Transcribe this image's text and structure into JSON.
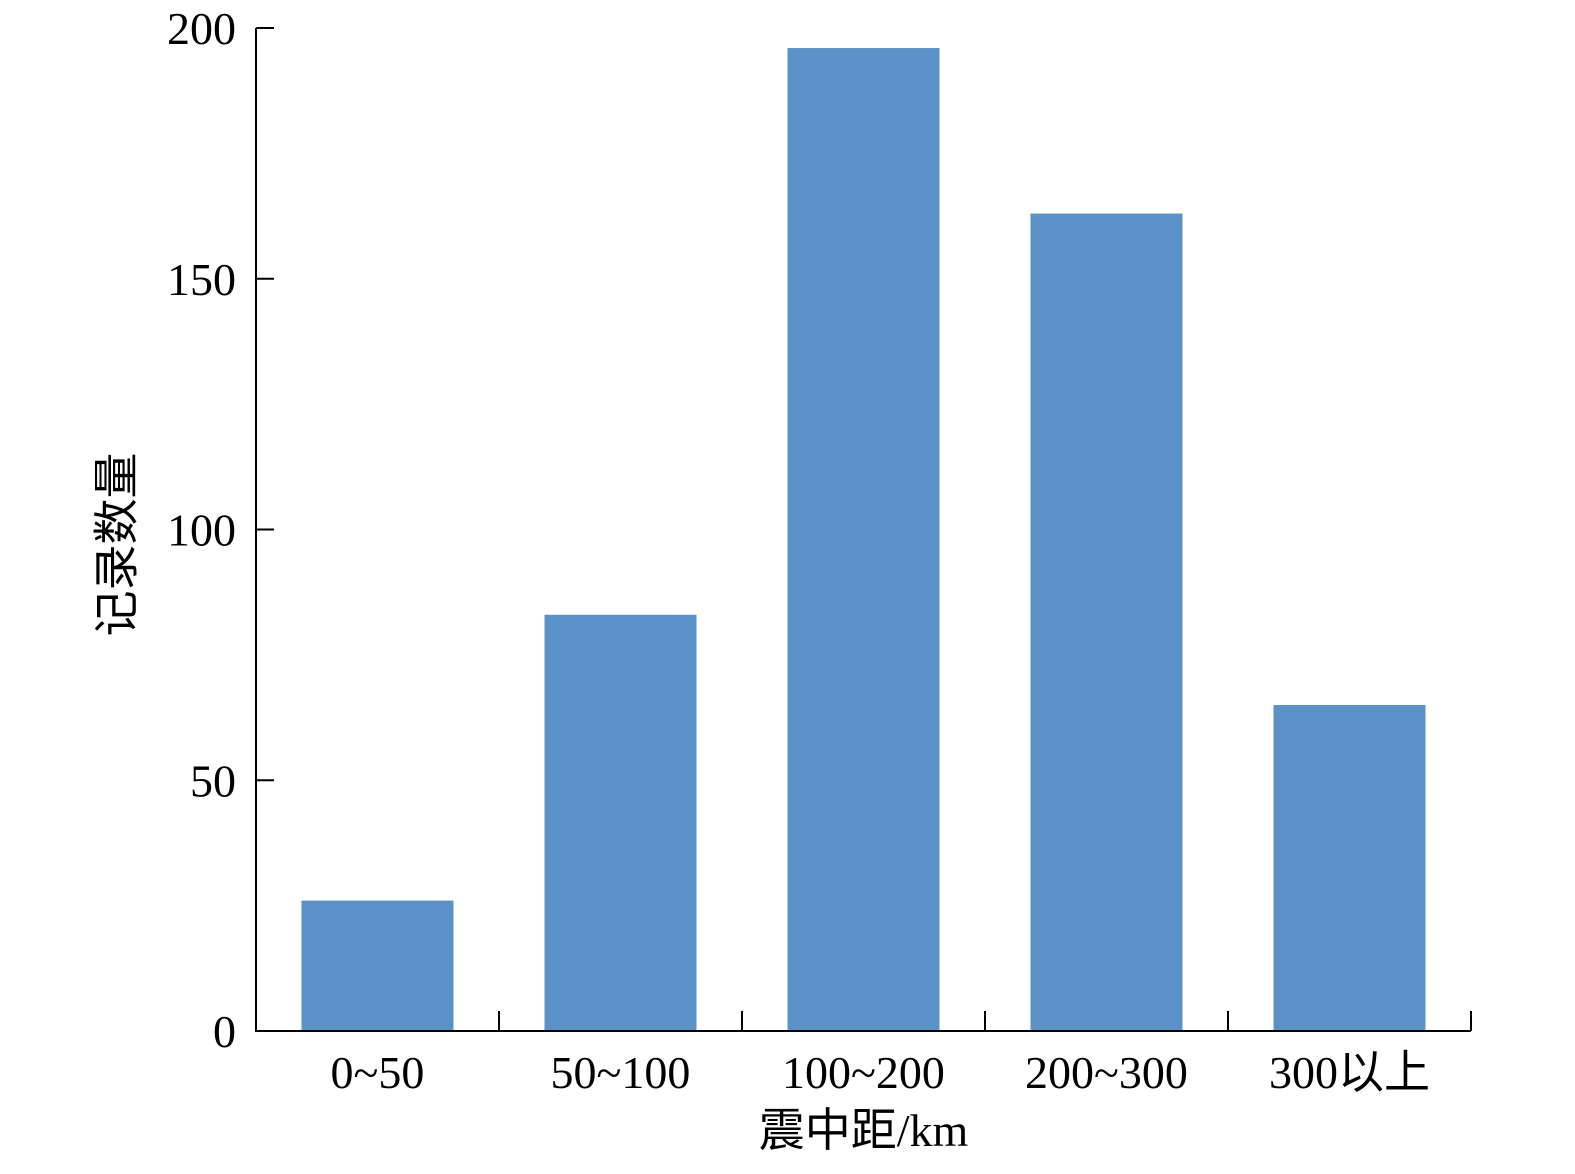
{
  "chart_data": {
    "type": "bar",
    "title": "",
    "xlabel": "震中距/km",
    "ylabel": "记录数量",
    "categories": [
      "0~50",
      "50~100",
      "100~200",
      "200~300",
      "300以上"
    ],
    "values": [
      26,
      83,
      196,
      163,
      65
    ],
    "ylim": [
      0,
      200
    ],
    "yticks": [
      0,
      50,
      100,
      150,
      200
    ],
    "grid": false,
    "legend": "none",
    "bar_color": "#5a92c7"
  }
}
